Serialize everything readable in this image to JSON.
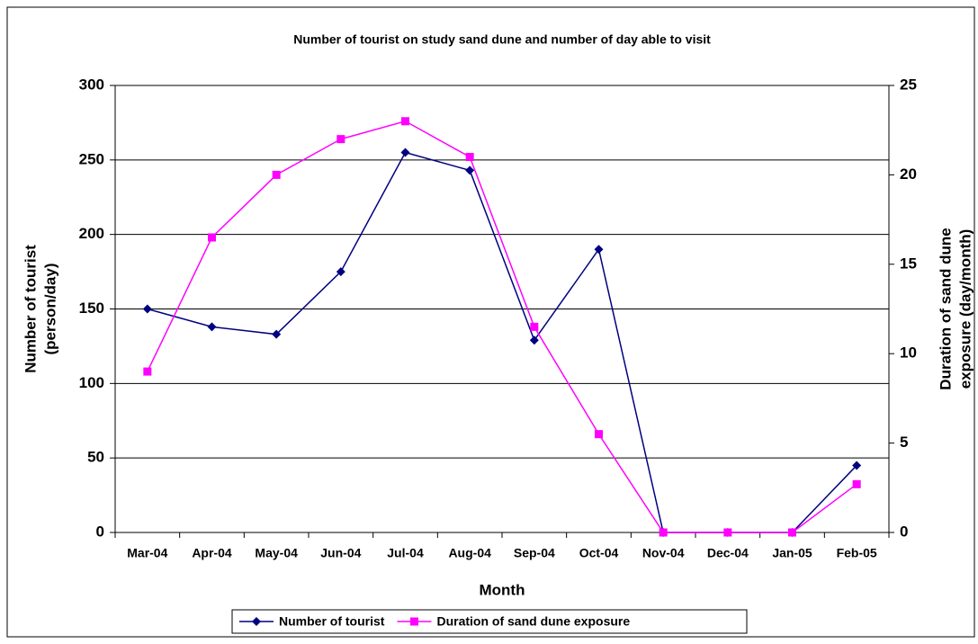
{
  "chart_data": {
    "type": "line",
    "title": "Number of tourist on study sand dune and number of day able to visit",
    "xlabel": "Month",
    "ylabel": [
      "Number of tourist",
      "(person/day)"
    ],
    "y2label": [
      "Duration of sand dune",
      "exposure (day/month)"
    ],
    "categories": [
      "Mar-04",
      "Apr-04",
      "May-04",
      "Jun-04",
      "Jul-04",
      "Aug-04",
      "Sep-04",
      "Oct-04",
      "Nov-04",
      "Dec-04",
      "Jan-05",
      "Feb-05"
    ],
    "series": [
      {
        "name": "Number of tourist",
        "color": "#000080",
        "marker": "diamond",
        "values": [
          150,
          138,
          133,
          175,
          255,
          243,
          129,
          190,
          0,
          0,
          0,
          45
        ]
      },
      {
        "name": "Duration of sand dune exposure",
        "color": "#ff00ff",
        "marker": "square",
        "axis": "y2",
        "values": [
          9,
          16.5,
          20,
          22,
          23,
          21,
          11.5,
          5.5,
          0,
          0,
          0,
          2.7
        ]
      }
    ],
    "ylim": [
      0,
      300
    ],
    "yticks": [
      0,
      50,
      100,
      150,
      200,
      250,
      300
    ],
    "y2lim": [
      0,
      25
    ],
    "y2ticks": [
      0,
      5,
      10,
      15,
      20,
      25
    ],
    "grid": true,
    "legend": "bottom"
  }
}
